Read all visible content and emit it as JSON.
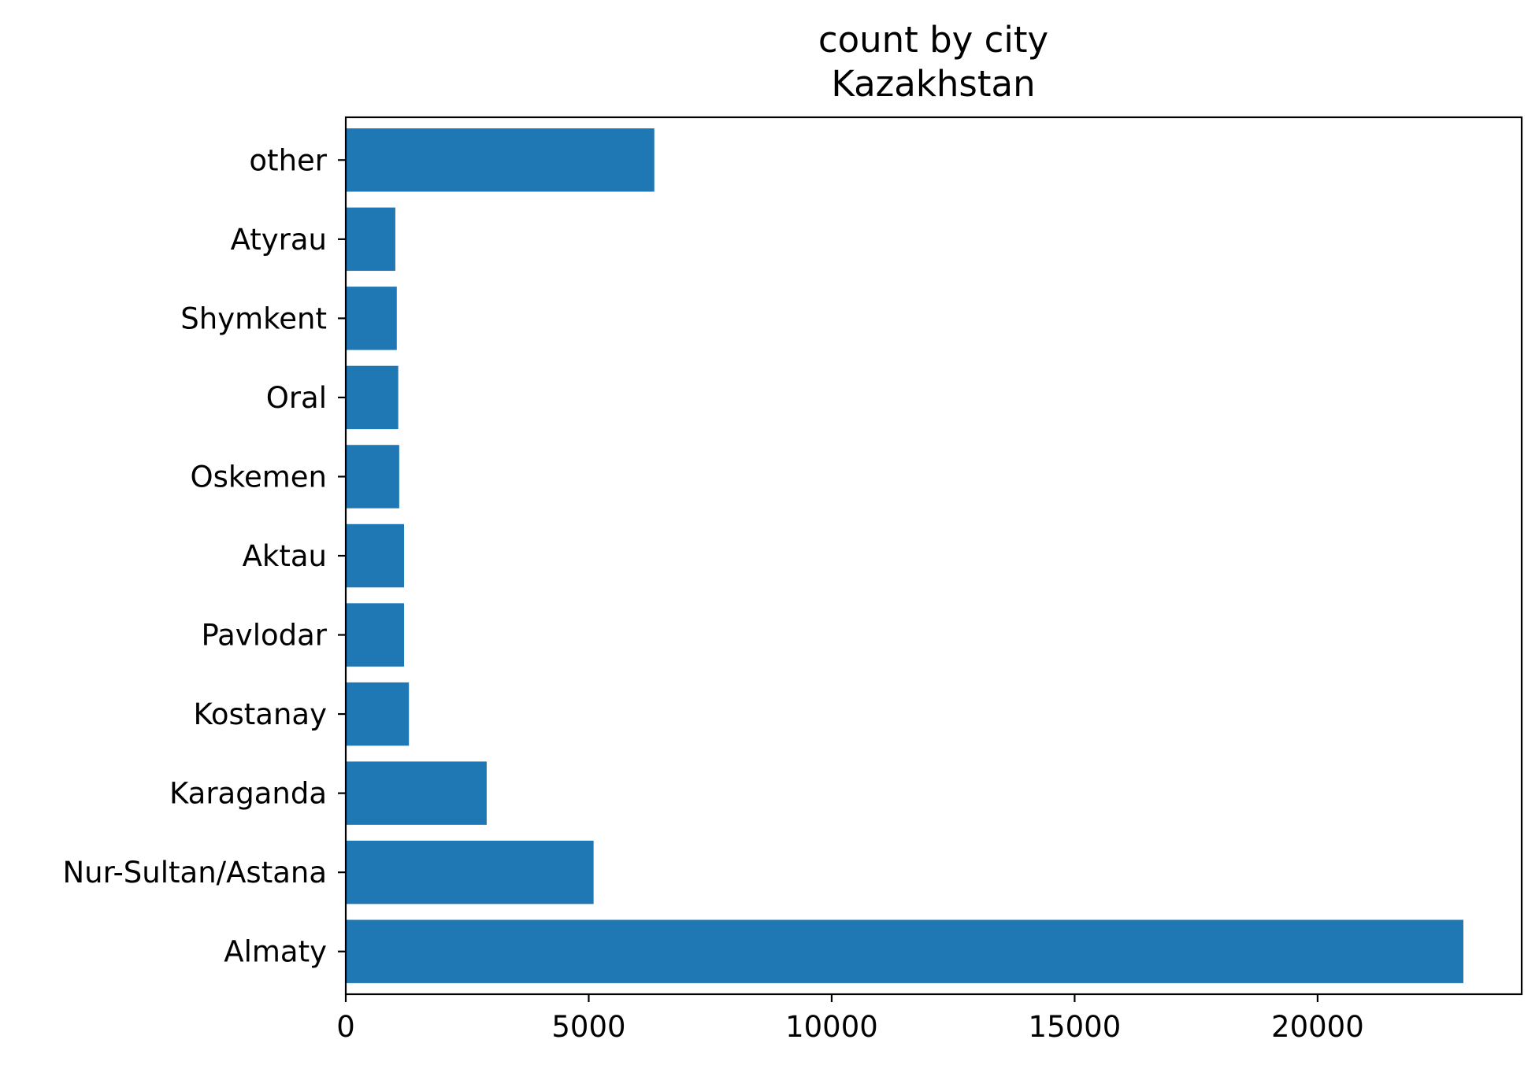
{
  "chart_data": {
    "type": "bar",
    "orientation": "horizontal",
    "title": "count by city",
    "subtitle": "Kazakhstan",
    "xlabel": "",
    "ylabel": "",
    "categories": [
      "Almaty",
      "Nur-Sultan/Astana",
      "Karaganda",
      "Kostanay",
      "Pavlodar",
      "Aktau",
      "Oskemen",
      "Oral",
      "Shymkent",
      "Atyrau",
      "other"
    ],
    "values": [
      23000,
      5100,
      2900,
      1300,
      1200,
      1200,
      1100,
      1080,
      1050,
      1020,
      6350
    ],
    "xlim": [
      0,
      24200
    ],
    "xticks": [
      0,
      5000,
      10000,
      15000,
      20000
    ],
    "xtick_labels": [
      "0",
      "5000",
      "10000",
      "15000",
      "20000"
    ],
    "grid": false,
    "legend": "none",
    "bar_color": "#1f77b4"
  }
}
